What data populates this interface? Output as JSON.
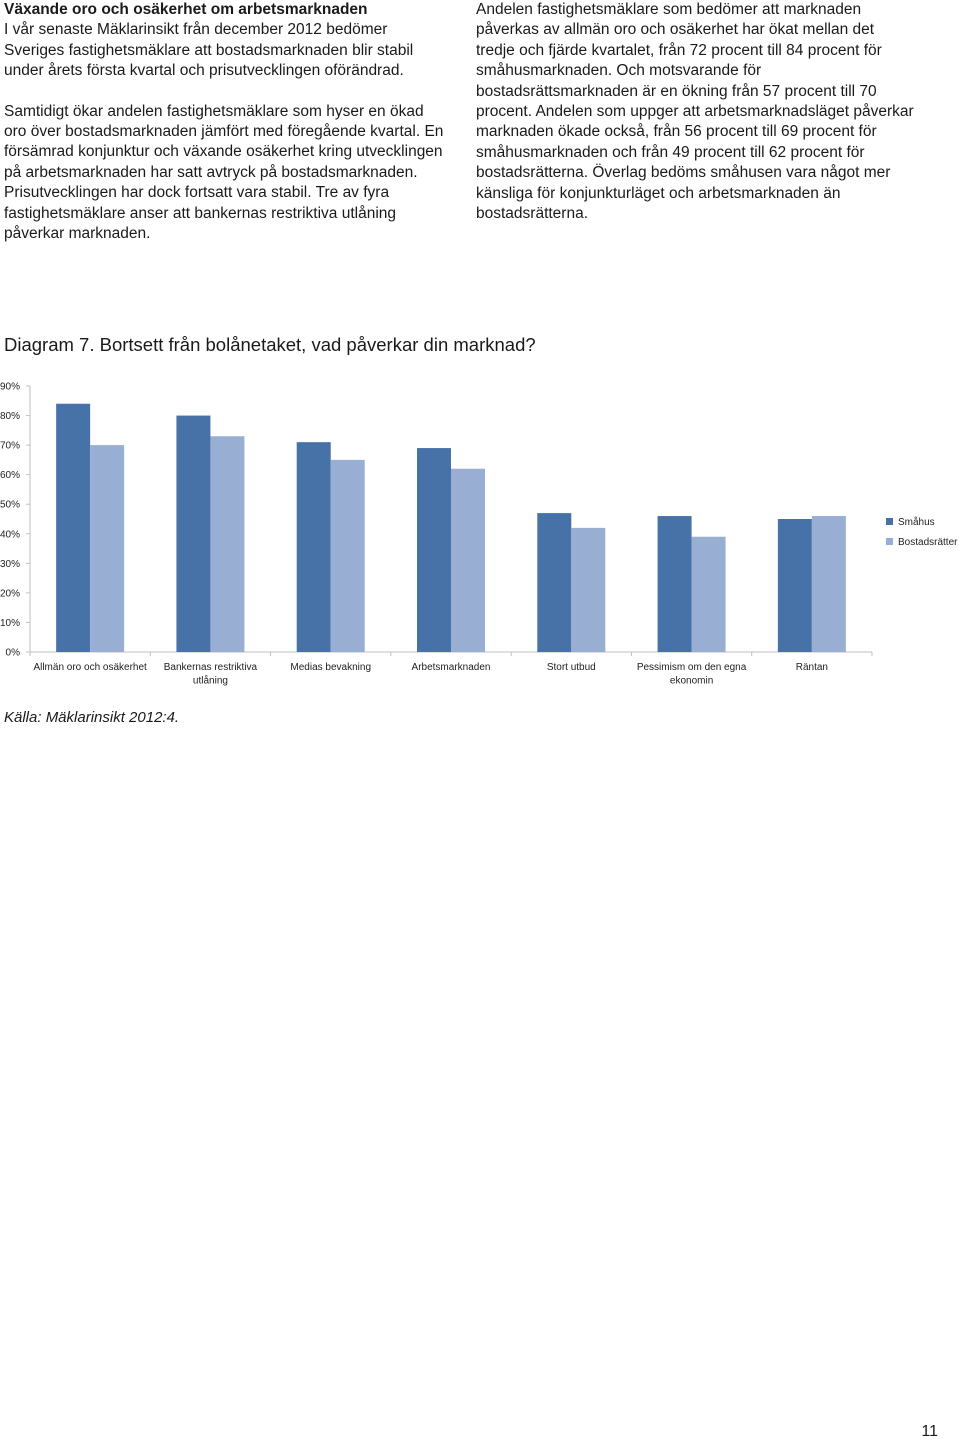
{
  "left_column": {
    "heading": "Växande oro och osäkerhet om arbetsmarknaden",
    "paragraph1": "I vår senaste Mäklarinsikt från december 2012 bedömer Sveriges fastighetsmäklare att bostadsmarknaden blir stabil under årets första kvartal och prisutvecklingen oförändrad.",
    "paragraph2": "Samtidigt ökar andelen fastighetsmäklare som hyser en ökad oro över bostadsmarknaden jämfört med föregående kvartal. En försämrad konjunktur och växande osäkerhet kring utvecklingen på arbetsmarknaden har satt avtryck på bostadsmarknaden. Prisutvecklingen har dock fortsatt vara stabil. Tre av fyra fastighetsmäklare anser att bankernas restriktiva utlåning påverkar marknaden."
  },
  "right_column": {
    "paragraph": "Andelen fastighetsmäklare som bedömer att marknaden påverkas av allmän oro och osäkerhet har ökat mellan det tredje och fjärde kvartalet, från 72 procent till 84 procent för småhusmarknaden. Och motsvarande för bostadsrättsmarknaden är en ökning från 57 procent till 70 procent. Andelen som uppger att arbetsmarknadsläget påverkar marknaden ökade också, från 56 procent till 69 procent för småhusmarknaden och från 49 procent till 62 procent för bostadsrätterna. Överlag bedöms småhusen vara något mer känsliga för konjunkturläget och arbetsmarknaden än bostadsrätterna."
  },
  "diagram_title": "Diagram 7. Bortsett från bolånetaket, vad påverkar din marknad?",
  "source": "Källa: Mäklarinsikt 2012:4.",
  "page_number": "11",
  "colors": {
    "smahus": "#4672a8",
    "bostadsratter": "#98aed3",
    "axis": "#bfbfbf"
  },
  "chart_data": {
    "type": "bar",
    "categories": [
      [
        "Allmän oro och osäkerhet"
      ],
      [
        "Bankernas restriktiva",
        "utlåning"
      ],
      [
        "Medias bevakning"
      ],
      [
        "Arbetsmarknaden"
      ],
      [
        "Stort utbud"
      ],
      [
        "Pessimism om den egna",
        "ekonomin"
      ],
      [
        "Räntan"
      ]
    ],
    "series": [
      {
        "name": "Småhus",
        "values": [
          84,
          80,
          71,
          69,
          47,
          46,
          45
        ]
      },
      {
        "name": "Bostadsrätter",
        "values": [
          70,
          73,
          65,
          62,
          42,
          39,
          46
        ]
      }
    ],
    "yticks": [
      "0%",
      "10%",
      "20%",
      "30%",
      "40%",
      "50%",
      "60%",
      "70%",
      "80%",
      "90%"
    ],
    "ylim": [
      0,
      90
    ],
    "grid": false,
    "legend_position": "right"
  }
}
